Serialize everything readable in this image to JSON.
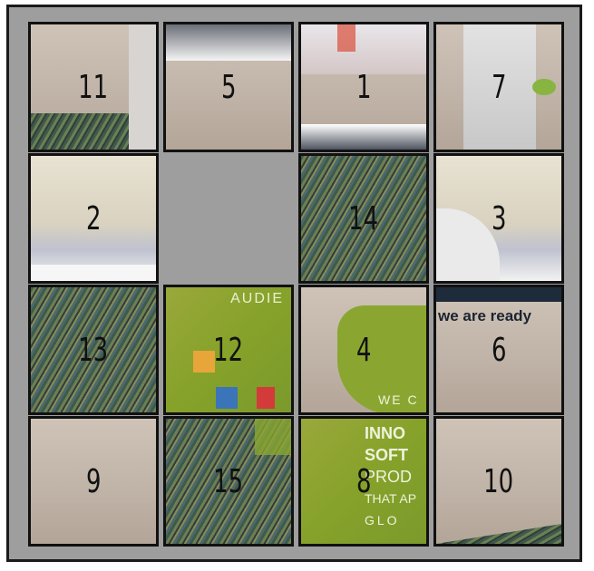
{
  "puzzle": {
    "tiles": [
      {
        "label": "11",
        "texture": "t-wall"
      },
      {
        "label": "5",
        "texture": "t-wall"
      },
      {
        "label": "1",
        "texture": "t-wall"
      },
      {
        "label": "7",
        "texture": "t-wall"
      },
      {
        "label": "2",
        "texture": "t-ceiling"
      },
      {
        "label": "",
        "texture": "empty"
      },
      {
        "label": "14",
        "texture": "t-carpet"
      },
      {
        "label": "3",
        "texture": "t-ceiling"
      },
      {
        "label": "13",
        "texture": "t-carpet"
      },
      {
        "label": "12",
        "texture": "t-green"
      },
      {
        "label": "4",
        "texture": "t-green"
      },
      {
        "label": "6",
        "texture": "t-wall"
      },
      {
        "label": "9",
        "texture": "t-wall"
      },
      {
        "label": "15",
        "texture": "t-carpet"
      },
      {
        "label": "8",
        "texture": "t-green"
      },
      {
        "label": "10",
        "texture": "t-wall"
      }
    ],
    "wall_text": {
      "audience": "AUDIE",
      "we_are_ready": "we are ready",
      "innov": "INNO",
      "soft": "SOFT",
      "prod": "PROD",
      "that_ap": "THAT AP",
      "glo": "GLO",
      "we_c": "WE C"
    }
  }
}
